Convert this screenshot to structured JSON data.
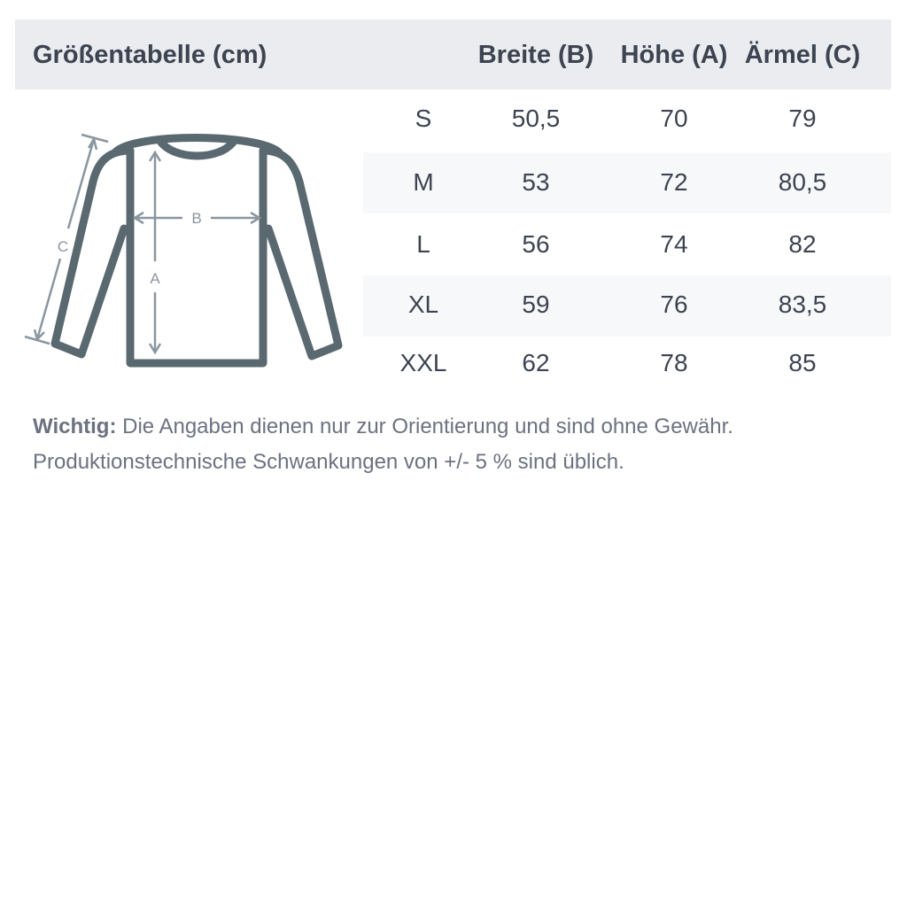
{
  "header": {
    "title": "Größentabelle (cm)",
    "columns": [
      "Breite (B)",
      "Höhe (A)",
      "Ärmel (C)"
    ]
  },
  "rows": [
    {
      "size": "S",
      "breite": "50,5",
      "hoehe": "70",
      "aermel": "79"
    },
    {
      "size": "M",
      "breite": "53",
      "hoehe": "72",
      "aermel": "80,5"
    },
    {
      "size": "L",
      "breite": "56",
      "hoehe": "74",
      "aermel": "82"
    },
    {
      "size": "XL",
      "breite": "59",
      "hoehe": "76",
      "aermel": "83,5"
    },
    {
      "size": "XXL",
      "breite": "62",
      "hoehe": "78",
      "aermel": "85"
    }
  ],
  "diagram": {
    "labels": {
      "a": "A",
      "b": "B",
      "c": "C"
    },
    "outline_color": "#5a6870",
    "arrow_color": "#8a96a0"
  },
  "note": {
    "label": "Wichtig:",
    "line1": " Die Angaben dienen nur zur Orientierung und sind ohne Gewähr.",
    "line2": "Produktionstechnische Schwankungen von +/- 5 % sind üblich."
  }
}
